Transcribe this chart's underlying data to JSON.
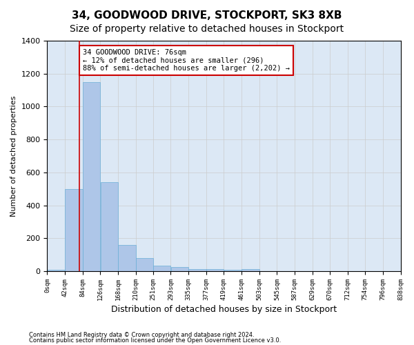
{
  "title": "34, GOODWOOD DRIVE, STOCKPORT, SK3 8XB",
  "subtitle": "Size of property relative to detached houses in Stockport",
  "xlabel": "Distribution of detached houses by size in Stockport",
  "ylabel": "Number of detached properties",
  "bin_labels": [
    "0sqm",
    "42sqm",
    "84sqm",
    "126sqm",
    "168sqm",
    "210sqm",
    "251sqm",
    "293sqm",
    "335sqm",
    "377sqm",
    "419sqm",
    "461sqm",
    "503sqm",
    "545sqm",
    "587sqm",
    "629sqm",
    "670sqm",
    "712sqm",
    "754sqm",
    "796sqm",
    "838sqm"
  ],
  "bar_heights": [
    10,
    500,
    1150,
    540,
    160,
    80,
    35,
    25,
    15,
    15,
    10,
    12,
    0,
    0,
    0,
    0,
    0,
    0,
    0,
    0
  ],
  "bin_edges": [
    0,
    42,
    84,
    126,
    168,
    210,
    251,
    293,
    335,
    377,
    419,
    461,
    503,
    545,
    587,
    629,
    670,
    712,
    754,
    796,
    838
  ],
  "bar_color": "#aec6e8",
  "bar_edge_color": "#6aafd6",
  "property_line_x": 76,
  "property_line_color": "#cc0000",
  "ylim": [
    0,
    1400
  ],
  "annotation_text": "34 GOODWOOD DRIVE: 76sqm\n← 12% of detached houses are smaller (296)\n88% of semi-detached houses are larger (2,202) →",
  "annotation_box_color": "#cc0000",
  "footer_line1": "Contains HM Land Registry data © Crown copyright and database right 2024.",
  "footer_line2": "Contains public sector information licensed under the Open Government Licence v3.0.",
  "bg_color": "#ffffff",
  "grid_color": "#cccccc",
  "title_fontsize": 11,
  "subtitle_fontsize": 10
}
